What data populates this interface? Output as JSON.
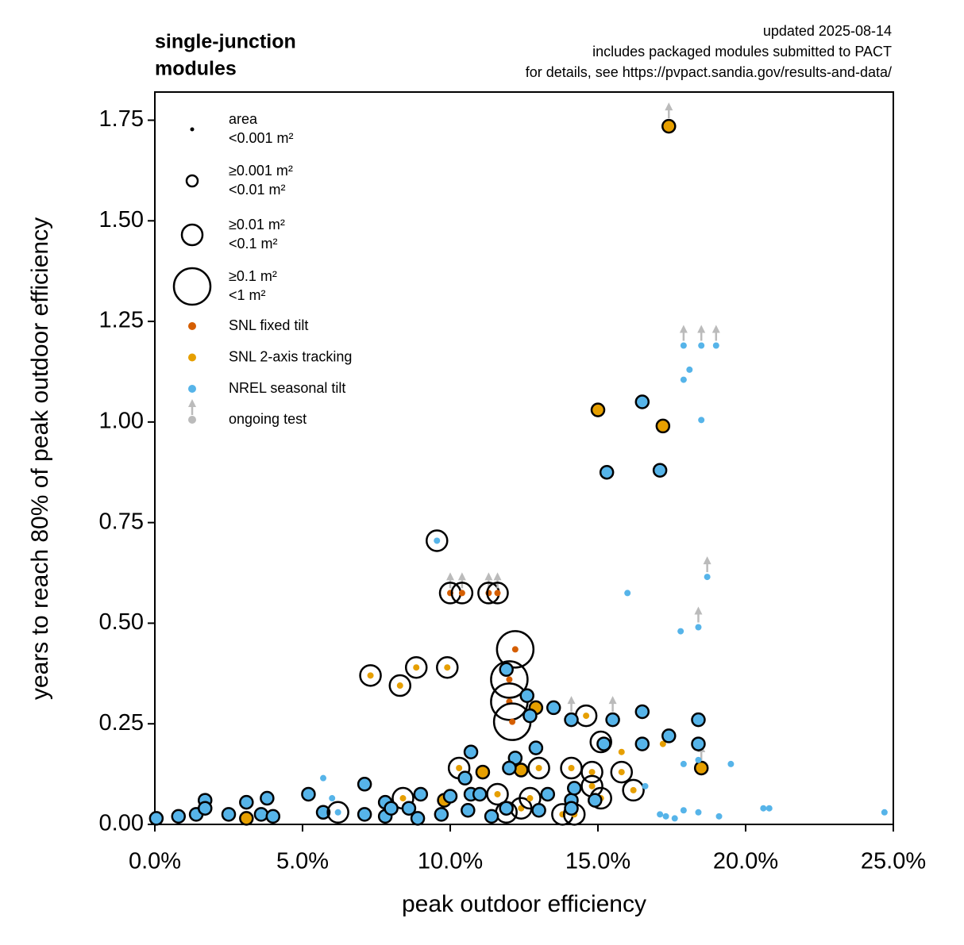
{
  "chart_data": {
    "type": "scatter",
    "title": [
      "single-junction",
      "modules"
    ],
    "note": [
      "updated 2025-08-14",
      "includes packaged modules submitted to PACT",
      "for details, see https://pvpact.sandia.gov/results-and-data/"
    ],
    "x_label": "peak outdoor efficiency",
    "y_label": "years to reach 80% of peak outdoor efficiency",
    "xlim": [
      0,
      25
    ],
    "ylim": [
      0,
      1.82
    ],
    "xticks": [
      {
        "value": 0,
        "label": "0.0%"
      },
      {
        "value": 5,
        "label": "5.0%"
      },
      {
        "value": 10,
        "label": "10.0%"
      },
      {
        "value": 15,
        "label": "15.0%"
      },
      {
        "value": 20,
        "label": "20.0%"
      },
      {
        "value": 25,
        "label": "25.0%"
      }
    ],
    "yticks": [
      {
        "value": 0,
        "label": "0.00"
      },
      {
        "value": 0.25,
        "label": "0.25"
      },
      {
        "value": 0.5,
        "label": "0.50"
      },
      {
        "value": 0.75,
        "label": "0.75"
      },
      {
        "value": 1,
        "label": "1.00"
      },
      {
        "value": 1.25,
        "label": "1.25"
      },
      {
        "value": 1.5,
        "label": "1.50"
      },
      {
        "value": 1.75,
        "label": "1.75"
      }
    ],
    "size_legend": [
      [
        "area",
        "<0.001 m²"
      ],
      [
        "≥0.001 m²",
        "<0.01 m²"
      ],
      [
        "≥0.01 m²",
        "<0.1 m²"
      ],
      [
        "≥0.1 m²",
        "<1 m²"
      ]
    ],
    "ongoing_label": "ongoing test",
    "ongoing_color": "#bbbbbb",
    "series": [
      {
        "name": "SNL fixed tilt",
        "color": "#d55e00",
        "x": [
          12.2,
          12.0,
          12.0,
          12.1,
          10.0,
          10.4,
          11.3,
          11.6,
          15.1
        ],
        "values": [
          0.435,
          0.36,
          0.305,
          0.255,
          0.575,
          0.575,
          0.575,
          0.575,
          0.205
        ],
        "size_class": [
          3,
          3,
          3,
          3,
          2,
          2,
          2,
          2,
          2
        ],
        "ongoing": [
          0,
          0,
          0,
          0,
          1,
          1,
          1,
          1,
          0
        ]
      },
      {
        "name": "SNL 2-axis tracking",
        "color": "#e69f00",
        "x": [
          17.4,
          15.0,
          17.2,
          18.5,
          7.3,
          8.3,
          8.85,
          9.9,
          14.6,
          15.8,
          17.2,
          10.3,
          11.1,
          12.4,
          12.9,
          13.0,
          14.1,
          14.8,
          15.8,
          16.2,
          11.6,
          12.4,
          12.7,
          8.4,
          9.8,
          11.9,
          13.8,
          14.2,
          3.1,
          14.8,
          15.1
        ],
        "values": [
          1.735,
          1.03,
          0.99,
          0.14,
          0.37,
          0.345,
          0.39,
          0.39,
          0.27,
          0.18,
          0.2,
          0.14,
          0.13,
          0.135,
          0.29,
          0.14,
          0.14,
          0.13,
          0.13,
          0.085,
          0.075,
          0.04,
          0.065,
          0.065,
          0.06,
          0.03,
          0.025,
          0.025,
          0.015,
          0.095,
          0.065
        ],
        "size_class": [
          1,
          1,
          1,
          1,
          2,
          2,
          2,
          2,
          2,
          0,
          0,
          2,
          1,
          1,
          1,
          2,
          2,
          2,
          2,
          2,
          2,
          2,
          2,
          2,
          1,
          2,
          2,
          2,
          1,
          2,
          2
        ],
        "ongoing": [
          1,
          0,
          0,
          1,
          0,
          0,
          0,
          0,
          0,
          0,
          0,
          0,
          0,
          0,
          0,
          0,
          0,
          0,
          0,
          0,
          0,
          0,
          0,
          0,
          0,
          0,
          0,
          0,
          0,
          0,
          0
        ]
      },
      {
        "name": "NREL seasonal tilt",
        "color": "#56b4e9",
        "x": [
          24.7,
          20.6,
          20.8,
          19.1,
          18.4,
          17.9,
          17.6,
          17.3,
          17.1,
          19.5,
          17.9,
          18.4,
          18.4,
          18.4,
          17.4,
          16.5,
          16.5,
          15.5,
          17.8,
          18.4,
          18.7,
          16.0,
          17.9,
          18.1,
          18.5,
          17.9,
          18.5,
          19.0,
          16.5,
          15.3,
          17.1,
          9.55,
          11.9,
          12.6,
          12.7,
          13.5,
          14.1,
          10.7,
          12.9,
          12.2,
          12.0,
          10.5,
          15.2,
          0.05,
          0.8,
          1.4,
          1.7,
          1.7,
          2.5,
          3.1,
          3.6,
          3.8,
          4.0,
          5.2,
          5.7,
          5.7,
          6.0,
          6.2,
          7.1,
          7.1,
          7.8,
          7.8,
          8.0,
          8.6,
          9.0,
          8.9,
          9.7,
          10.0,
          10.6,
          10.7,
          11.0,
          11.4,
          11.9,
          13.3,
          13.0,
          14.1,
          14.1,
          14.2,
          14.9,
          16.6
        ],
        "values": [
          0.03,
          0.04,
          0.04,
          0.02,
          0.03,
          0.035,
          0.015,
          0.02,
          0.025,
          0.15,
          0.15,
          0.16,
          0.26,
          0.2,
          0.22,
          0.28,
          0.2,
          0.26,
          0.48,
          0.49,
          0.615,
          0.575,
          1.105,
          1.13,
          1.005,
          1.19,
          1.19,
          1.19,
          1.05,
          0.875,
          0.88,
          0.705,
          0.385,
          0.32,
          0.27,
          0.29,
          0.26,
          0.18,
          0.19,
          0.165,
          0.14,
          0.115,
          0.2,
          0.015,
          0.02,
          0.025,
          0.06,
          0.04,
          0.025,
          0.055,
          0.025,
          0.065,
          0.02,
          0.075,
          0.03,
          0.115,
          0.065,
          0.03,
          0.1,
          0.025,
          0.055,
          0.02,
          0.04,
          0.04,
          0.075,
          0.015,
          0.025,
          0.07,
          0.035,
          0.075,
          0.075,
          0.02,
          0.04,
          0.075,
          0.035,
          0.06,
          0.04,
          0.09,
          0.06,
          0.095
        ],
        "size_class": [
          0,
          0,
          0,
          0,
          0,
          0,
          0,
          0,
          0,
          0,
          0,
          0,
          1,
          1,
          1,
          1,
          1,
          1,
          0,
          0,
          0,
          0,
          0,
          0,
          0,
          0,
          0,
          0,
          1,
          1,
          1,
          2,
          1,
          1,
          1,
          1,
          1,
          1,
          1,
          1,
          1,
          1,
          1,
          1,
          1,
          1,
          1,
          1,
          1,
          1,
          1,
          1,
          1,
          1,
          1,
          0,
          0,
          2,
          1,
          1,
          1,
          1,
          1,
          1,
          1,
          1,
          1,
          1,
          1,
          1,
          1,
          1,
          1,
          1,
          1,
          1,
          1,
          1,
          1,
          0
        ],
        "ongoing": [
          0,
          0,
          0,
          0,
          0,
          0,
          0,
          0,
          0,
          0,
          0,
          0,
          0,
          0,
          0,
          0,
          0,
          1,
          0,
          1,
          1,
          0,
          0,
          0,
          0,
          1,
          1,
          1,
          0,
          0,
          0,
          0,
          0,
          0,
          0,
          0,
          1,
          0,
          0,
          0,
          0,
          0,
          0,
          0,
          0,
          0,
          0,
          0,
          0,
          0,
          0,
          0,
          0,
          0,
          0,
          0,
          0,
          0,
          0,
          0,
          0,
          0,
          0,
          0,
          0,
          0,
          0,
          0,
          0,
          0,
          0,
          0,
          0,
          0,
          0,
          0,
          0,
          0,
          0,
          0
        ]
      }
    ]
  }
}
